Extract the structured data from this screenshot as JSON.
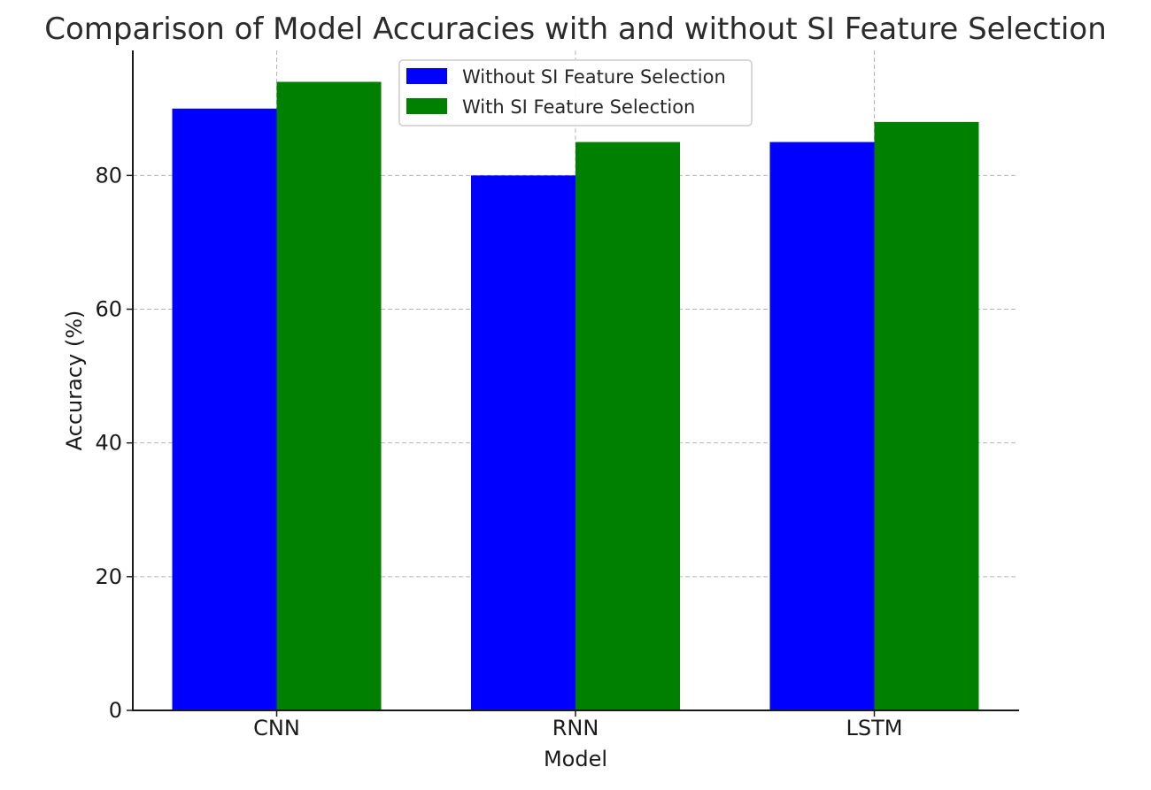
{
  "chart_data": {
    "type": "bar",
    "title": "Comparison of Model Accuracies with and without SI Feature Selection",
    "xlabel": "Model",
    "ylabel": "Accuracy (%)",
    "categories": [
      "CNN",
      "RNN",
      "LSTM"
    ],
    "series": [
      {
        "name": "Without SI Feature Selection",
        "values": [
          90,
          80,
          85
        ],
        "color": "#0000ff"
      },
      {
        "name": "With SI Feature Selection",
        "values": [
          94,
          85,
          88
        ],
        "color": "#008000"
      }
    ],
    "ylim": [
      0,
      98.7
    ],
    "yticks": [
      0,
      20,
      40,
      60,
      80
    ],
    "grid": true,
    "legend_position": "top-center"
  }
}
